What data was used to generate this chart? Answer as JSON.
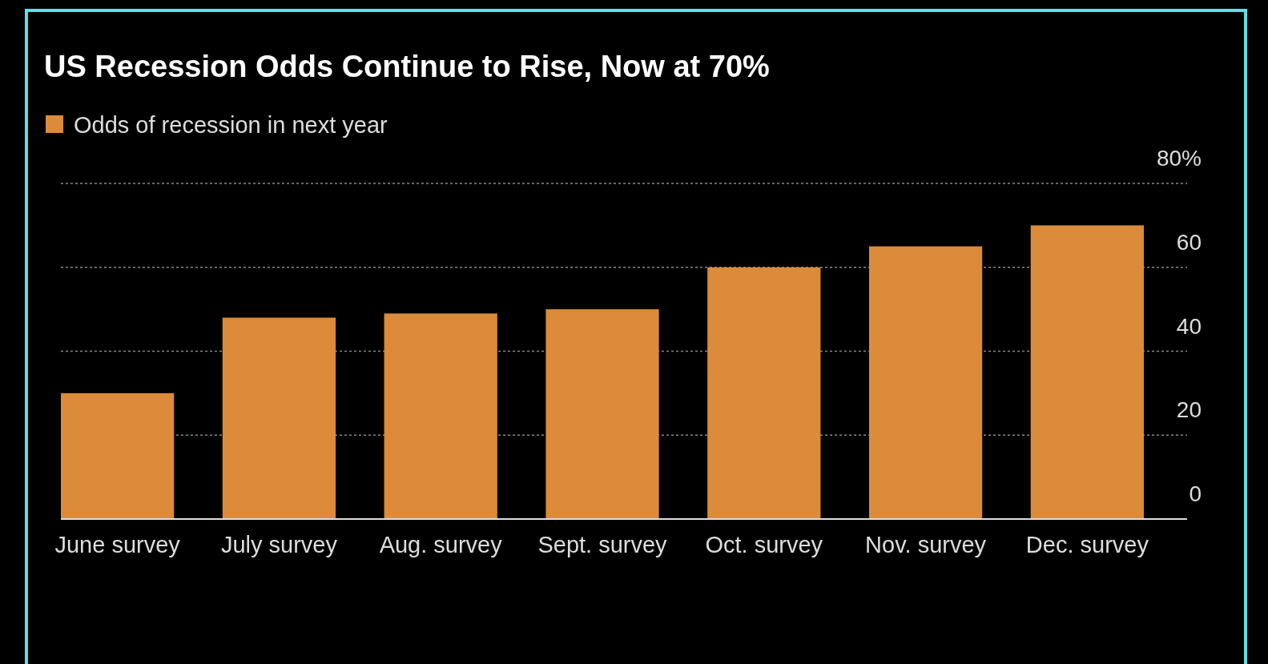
{
  "chart_data": {
    "type": "bar",
    "title": "US Recession Odds Continue to Rise, Now at 70%",
    "categories": [
      "June survey",
      "July survey",
      "Aug. survey",
      "Sept. survey",
      "Oct. survey",
      "Nov. survey",
      "Dec. survey"
    ],
    "series": [
      {
        "name": "Odds of recession in next year",
        "color": "#db8b3a",
        "values": [
          30,
          48,
          49,
          50,
          60,
          65,
          70
        ]
      }
    ],
    "ylim": [
      0,
      80
    ],
    "yticks": [
      0,
      20,
      40,
      60,
      {
        "value": 80,
        "label": "80%"
      }
    ],
    "grid": "y",
    "legend": "top left"
  }
}
